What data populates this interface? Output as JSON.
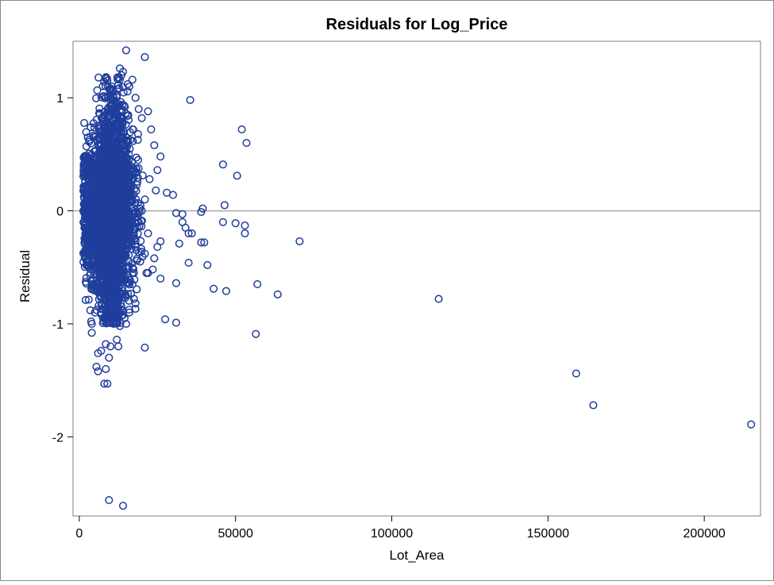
{
  "chart_data": {
    "type": "scatter",
    "title": "Residuals for Log_Price",
    "xlabel": "Lot_Area",
    "ylabel": "Residual",
    "xlim": [
      -2000,
      218000
    ],
    "ylim": [
      -2.7,
      1.5
    ],
    "xticks": [
      0,
      50000,
      100000,
      150000,
      200000
    ],
    "xtick_labels": [
      "0",
      "50000",
      "100000",
      "150000",
      "200000"
    ],
    "yticks": [
      -2,
      -1,
      0,
      1
    ],
    "ytick_labels": [
      "-2",
      "-1",
      "0",
      "1"
    ],
    "reference_line_y": 0,
    "grid": false,
    "legend": "none",
    "marker": "open-circle",
    "colors": {
      "marker": "#1f3e9c",
      "reference_line": "#a9a9a9",
      "frame": "#7f7f7f",
      "outer_border": "#8a8a8a"
    },
    "cluster_note": "dense cloud of roughly 2900 points for Lot_Area between about 1300 and 20000 with residuals between about -1.2 and 1.2",
    "points": [
      [
        15000,
        1.42
      ],
      [
        21000,
        1.36
      ],
      [
        13000,
        1.26
      ],
      [
        14000,
        1.23
      ],
      [
        13500,
        1.2
      ],
      [
        15500,
        1.12
      ],
      [
        17000,
        1.16
      ],
      [
        12000,
        1.02
      ],
      [
        16000,
        1.1
      ],
      [
        11000,
        1.0
      ],
      [
        18000,
        1.0
      ],
      [
        19000,
        0.9
      ],
      [
        20000,
        0.82
      ],
      [
        22000,
        0.88
      ],
      [
        23000,
        0.72
      ],
      [
        24000,
        0.58
      ],
      [
        26000,
        0.48
      ],
      [
        25000,
        0.36
      ],
      [
        24500,
        0.18
      ],
      [
        22500,
        0.28
      ],
      [
        21000,
        0.1
      ],
      [
        20000,
        0.0
      ],
      [
        19000,
        -0.1
      ],
      [
        22000,
        -0.2
      ],
      [
        18000,
        -0.3
      ],
      [
        21000,
        -0.38
      ],
      [
        19500,
        -0.45
      ],
      [
        24000,
        -0.42
      ],
      [
        25000,
        -0.32
      ],
      [
        26000,
        -0.27
      ],
      [
        23500,
        -0.52
      ],
      [
        22000,
        -0.55
      ],
      [
        21500,
        -0.55
      ],
      [
        26000,
        -0.6
      ],
      [
        17000,
        -0.55
      ],
      [
        17000,
        -0.65
      ],
      [
        17500,
        -0.78
      ],
      [
        18000,
        -0.82
      ],
      [
        16000,
        -0.9
      ],
      [
        15000,
        -1.0
      ],
      [
        14500,
        -0.95
      ],
      [
        13000,
        -1.02
      ],
      [
        11000,
        -1.0
      ],
      [
        12000,
        -1.14
      ],
      [
        12500,
        -1.2
      ],
      [
        10000,
        -1.2
      ],
      [
        9500,
        -1.3
      ],
      [
        8500,
        -1.18
      ],
      [
        7000,
        -1.24
      ],
      [
        6000,
        -1.26
      ],
      [
        5500,
        -1.38
      ],
      [
        6000,
        -1.42
      ],
      [
        8500,
        -1.4
      ],
      [
        9000,
        -1.53
      ],
      [
        8000,
        -1.53
      ],
      [
        4000,
        -1.0
      ],
      [
        4000,
        -1.08
      ],
      [
        3800,
        -0.98
      ],
      [
        5000,
        -0.9
      ],
      [
        3500,
        -0.88
      ],
      [
        21000,
        -1.21
      ],
      [
        9500,
        -2.56
      ],
      [
        14000,
        -2.61
      ],
      [
        27500,
        -0.96
      ],
      [
        31000,
        -0.99
      ],
      [
        28000,
        0.16
      ],
      [
        30000,
        0.14
      ],
      [
        31000,
        -0.02
      ],
      [
        33000,
        -0.03
      ],
      [
        33000,
        -0.1
      ],
      [
        34000,
        -0.15
      ],
      [
        35000,
        -0.2
      ],
      [
        36000,
        -0.2
      ],
      [
        32000,
        -0.29
      ],
      [
        35000,
        -0.46
      ],
      [
        31000,
        -0.64
      ],
      [
        40000,
        -0.28
      ],
      [
        39500,
        0.02
      ],
      [
        39000,
        -0.01
      ],
      [
        41000,
        -0.48
      ],
      [
        39000,
        -0.28
      ],
      [
        35500,
        0.98
      ],
      [
        43000,
        -0.69
      ],
      [
        46000,
        -0.1
      ],
      [
        47000,
        -0.71
      ],
      [
        46500,
        0.05
      ],
      [
        46000,
        0.41
      ],
      [
        50500,
        0.31
      ],
      [
        52000,
        0.72
      ],
      [
        53500,
        0.6
      ],
      [
        50000,
        -0.11
      ],
      [
        53000,
        -0.13
      ],
      [
        53000,
        -0.2
      ],
      [
        57000,
        -0.65
      ],
      [
        56500,
        -1.09
      ],
      [
        63500,
        -0.74
      ],
      [
        70500,
        -0.27
      ],
      [
        115000,
        -0.78
      ],
      [
        159000,
        -1.44
      ],
      [
        164500,
        -1.72
      ],
      [
        215000,
        -1.89
      ]
    ]
  }
}
